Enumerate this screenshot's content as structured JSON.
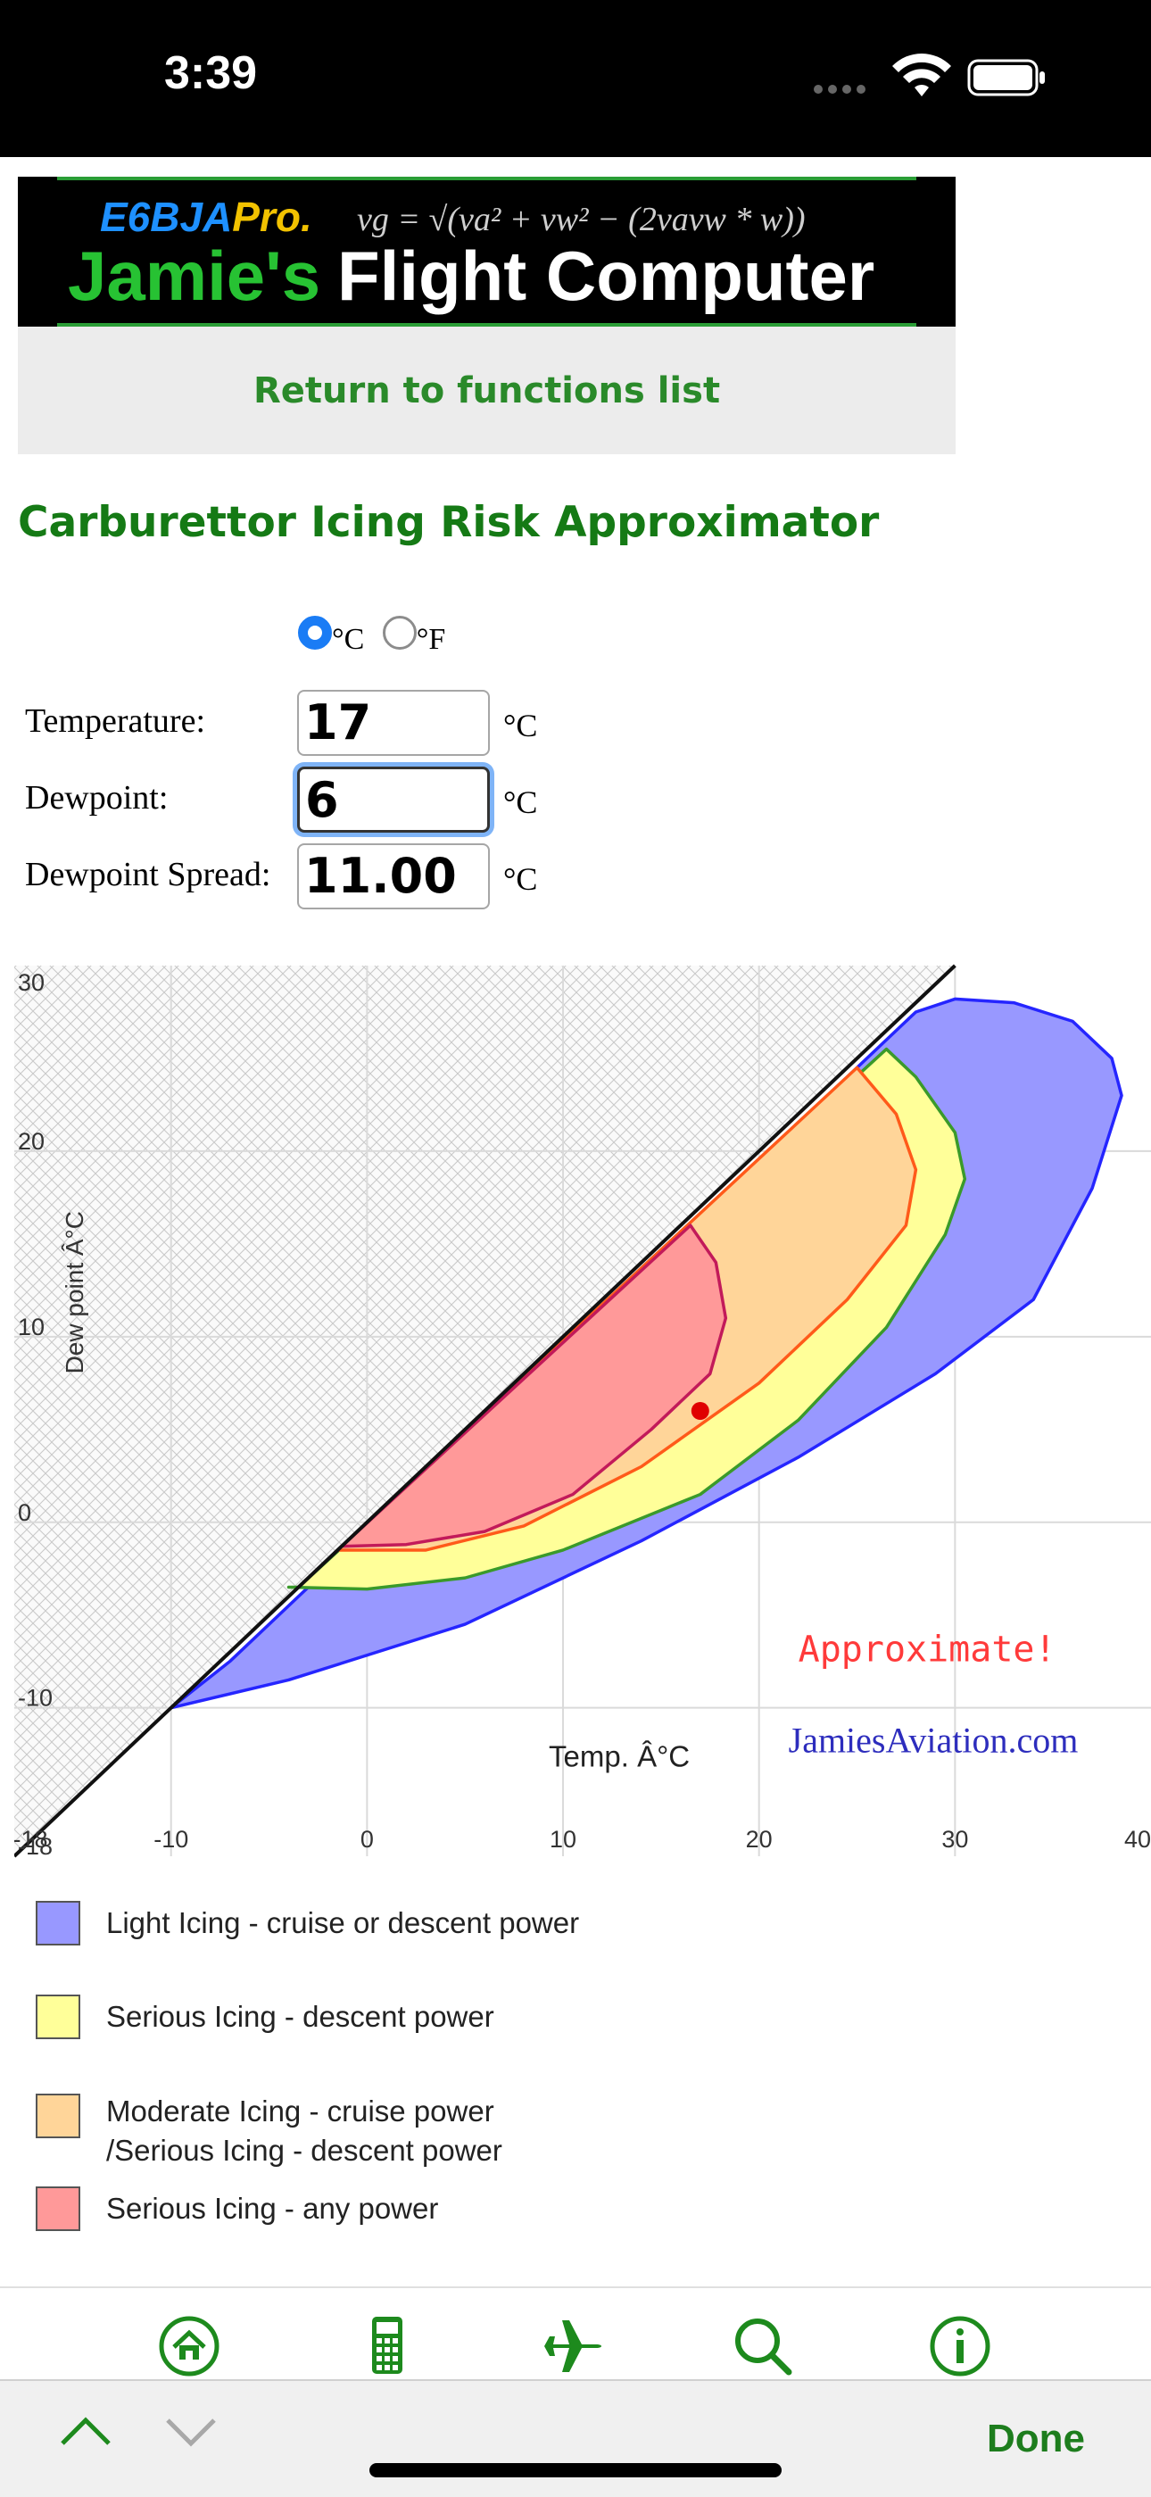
{
  "status_bar": {
    "time": "3:39"
  },
  "banner": {
    "brand": "E6BJA",
    "brand_suffix": "Pro.",
    "formula": "vg = √(va² + vw² − (2vavw * w))",
    "title_part1": "Jamie's",
    "title_part2": "Flight Computer"
  },
  "nav": {
    "return_label": "Return to functions list"
  },
  "page": {
    "title": "Carburettor Icing Risk Approximator"
  },
  "units": {
    "celsius_label": "°C",
    "fahrenheit_label": "°F",
    "selected": "celsius"
  },
  "form": {
    "temperature": {
      "label": "Temperature:",
      "value": "17",
      "unit": "°C"
    },
    "dewpoint": {
      "label": "Dewpoint:",
      "value": "6",
      "unit": "°C"
    },
    "spread": {
      "label": "Dewpoint Spread:",
      "value": "11.00",
      "unit": "°C"
    }
  },
  "chart_data": {
    "type": "scatter",
    "xlabel": "Temp. Â°C",
    "ylabel": "Dew point Â°C",
    "xlim": [
      -18,
      40
    ],
    "ylim": [
      -18,
      30
    ],
    "x_ticks": [
      "-18",
      "-10",
      "0",
      "10",
      "20",
      "30",
      "40"
    ],
    "y_ticks": [
      "30",
      "20",
      "10",
      "0",
      "-10",
      "-18"
    ],
    "grid": true,
    "annotation": "Approximate!",
    "watermark": "JamiesAviation.com",
    "point": {
      "x": 17,
      "y": 6,
      "color": "#e00000"
    },
    "colors": {
      "light": "#9898ff",
      "serious_descent": "#ffff99",
      "moderate": "#ffd599",
      "serious_any": "#ff9999"
    }
  },
  "legend": [
    {
      "label": "Light Icing - cruise or descent power",
      "color": "#9898ff"
    },
    {
      "label": "Serious Icing - descent power",
      "color": "#ffff99"
    },
    {
      "label": "Moderate Icing - cruise power",
      "label2": "/Serious Icing - descent power",
      "color": "#ffd599"
    },
    {
      "label": "Serious Icing - any power",
      "color": "#ff9999"
    }
  ],
  "tabs": [
    "home-icon",
    "calculator-icon",
    "airplane-icon",
    "search-icon",
    "info-icon"
  ],
  "toolbar": {
    "done_label": "Done"
  },
  "accent": "#1d8a1d"
}
